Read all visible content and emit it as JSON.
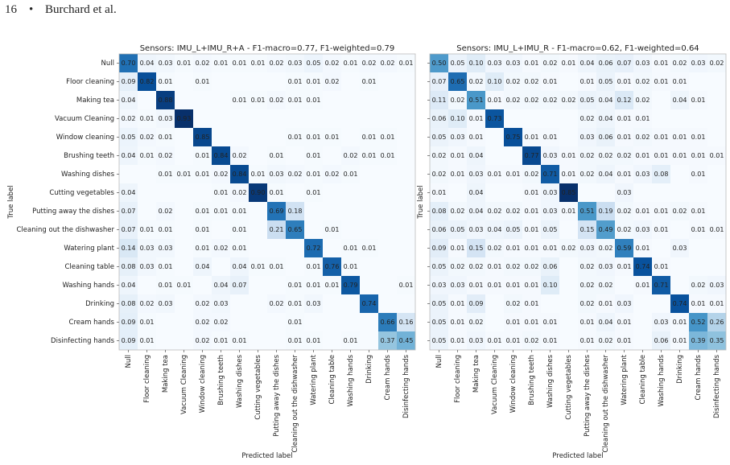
{
  "page_header": {
    "page_number": "16",
    "running_head": "Burchard et al."
  },
  "chart_data": [
    {
      "type": "heatmap",
      "colormap": "Blues",
      "title": "Sensors: IMU_L+IMU_R+A - F1-macro=0.77, F1-weighted=0.79",
      "x_label": "Predicted label",
      "y_label": "True label",
      "categories": [
        "Null",
        "Floor cleaning",
        "Making tea",
        "Vacuum Cleaning",
        "Window cleaning",
        "Brushing teeth",
        "Washing dishes",
        "Cutting vegetables",
        "Putting away the dishes",
        "Cleaning out the dishwasher",
        "Watering plant",
        "Cleaning table",
        "Washing hands",
        "Drinking",
        "Cream hands",
        "Disinfecting hands"
      ],
      "values": [
        [
          0.7,
          0.04,
          0.03,
          0.01,
          0.02,
          0.01,
          0.01,
          0.01,
          0.02,
          0.03,
          0.05,
          0.02,
          0.01,
          0.02,
          0.02,
          0.01
        ],
        [
          0.09,
          0.82,
          0.01,
          null,
          0.01,
          null,
          null,
          null,
          null,
          0.01,
          0.01,
          0.02,
          null,
          0.01,
          null,
          null
        ],
        [
          0.04,
          null,
          0.88,
          null,
          null,
          null,
          0.01,
          0.01,
          0.02,
          0.01,
          0.01,
          null,
          null,
          null,
          null,
          null
        ],
        [
          0.02,
          0.01,
          0.03,
          0.93,
          null,
          null,
          null,
          null,
          null,
          null,
          null,
          null,
          null,
          null,
          null,
          null
        ],
        [
          0.05,
          0.02,
          0.01,
          null,
          0.85,
          null,
          null,
          null,
          null,
          0.01,
          0.01,
          0.01,
          null,
          0.01,
          0.01,
          null
        ],
        [
          0.04,
          0.01,
          0.02,
          null,
          0.01,
          0.84,
          0.02,
          null,
          0.01,
          null,
          0.01,
          null,
          0.02,
          0.01,
          0.01,
          null
        ],
        [
          null,
          null,
          0.01,
          0.01,
          0.01,
          0.02,
          0.84,
          0.01,
          0.03,
          0.02,
          0.01,
          0.02,
          0.01,
          null,
          null,
          null
        ],
        [
          0.04,
          null,
          null,
          null,
          null,
          0.01,
          0.02,
          0.9,
          0.01,
          null,
          0.01,
          null,
          null,
          null,
          null,
          null
        ],
        [
          0.07,
          null,
          0.02,
          null,
          0.01,
          0.01,
          0.01,
          null,
          0.69,
          0.18,
          null,
          null,
          null,
          null,
          null,
          null
        ],
        [
          0.07,
          0.01,
          0.01,
          null,
          0.01,
          null,
          0.01,
          null,
          0.21,
          0.65,
          null,
          0.01,
          null,
          null,
          null,
          null
        ],
        [
          0.14,
          0.03,
          0.03,
          null,
          0.01,
          0.02,
          0.01,
          null,
          null,
          null,
          0.72,
          null,
          0.01,
          0.01,
          null,
          null
        ],
        [
          0.08,
          0.03,
          0.01,
          null,
          0.04,
          null,
          0.04,
          0.01,
          0.01,
          null,
          0.01,
          0.76,
          0.01,
          null,
          null,
          null
        ],
        [
          0.04,
          null,
          0.01,
          0.01,
          null,
          0.04,
          0.07,
          null,
          null,
          0.01,
          0.01,
          0.01,
          0.79,
          null,
          null,
          0.01
        ],
        [
          0.08,
          0.02,
          0.03,
          null,
          0.02,
          0.03,
          null,
          null,
          0.02,
          0.01,
          0.03,
          null,
          null,
          0.74,
          null,
          null
        ],
        [
          0.09,
          0.01,
          null,
          null,
          0.02,
          0.02,
          null,
          null,
          null,
          0.01,
          null,
          null,
          null,
          null,
          0.66,
          0.16
        ],
        [
          0.09,
          0.01,
          null,
          null,
          0.02,
          0.01,
          0.01,
          null,
          null,
          0.01,
          0.01,
          null,
          0.01,
          null,
          0.37,
          0.45
        ]
      ],
      "value_labels": [
        [
          "0.70",
          "0.04",
          "0.03",
          "0.01",
          "0.02",
          "0.01",
          "0.01",
          "0.01",
          "0.02",
          "0.03",
          "0.05",
          "0.02",
          "0.01",
          "0.02",
          "0.02",
          "0.01"
        ],
        [
          "0.09",
          "0.82",
          "0.01",
          null,
          "0.01",
          null,
          null,
          null,
          null,
          "0.01",
          "0.01",
          "0.02",
          null,
          "0.01",
          null,
          null
        ],
        [
          "0.04",
          null,
          "0.88",
          null,
          null,
          null,
          "0.01",
          "0.01",
          "0.02",
          "0.01",
          "0.01",
          null,
          null,
          null,
          null,
          null
        ],
        [
          "0.02",
          "0.01",
          "0.03",
          "0.93",
          null,
          null,
          null,
          null,
          null,
          null,
          null,
          null,
          null,
          null,
          null,
          null
        ],
        [
          "0.05",
          "0.02",
          "0.01",
          null,
          "0.85",
          null,
          null,
          null,
          null,
          "0.01",
          "0.01",
          "0.01",
          null,
          "0.01",
          "0.01",
          null
        ],
        [
          "0.04",
          "0.01",
          "0.02",
          null,
          "0.01",
          "0.84",
          "0.02",
          null,
          "0.01",
          null,
          "0.01",
          null,
          "0.02",
          "0.01",
          "0.01",
          null
        ],
        [
          null,
          null,
          "0.01",
          "0.01",
          "0.01",
          "0.02",
          "0.84",
          "0.01",
          "0.03",
          "0.02",
          "0.01",
          "0.02",
          "0.01",
          null,
          null,
          null
        ],
        [
          "0.04",
          null,
          null,
          null,
          null,
          "0.01",
          "0.02",
          "0.90",
          "0.01",
          null,
          "0.01",
          null,
          null,
          null,
          null,
          null
        ],
        [
          "0.07",
          null,
          "0.02",
          null,
          "0.01",
          "0.01",
          "0.01",
          null,
          "0.69",
          "0.18",
          null,
          null,
          null,
          null,
          null,
          null
        ],
        [
          "0.07",
          "0.01",
          "0.01",
          null,
          "0.01",
          null,
          "0.01",
          null,
          "0.21",
          "0.65",
          null,
          "0.01",
          null,
          null,
          null,
          null
        ],
        [
          "0.14",
          "0.03",
          "0.03",
          null,
          "0.01",
          "0.02",
          "0.01",
          null,
          null,
          null,
          "0.72",
          null,
          "0.01",
          "0.01",
          null,
          null
        ],
        [
          "0.08",
          "0.03",
          "0.01",
          null,
          "0.04",
          null,
          "0.04",
          "0.01",
          "0.01",
          null,
          "0.01",
          "0.76",
          "0.01",
          null,
          null,
          null
        ],
        [
          "0.04",
          null,
          "0.01",
          "0.01",
          null,
          "0.04",
          "0.07",
          null,
          null,
          "0.01",
          "0.01",
          "0.01",
          "0.79",
          null,
          null,
          "0.01"
        ],
        [
          "0.08",
          "0.02",
          "0.03",
          null,
          "0.02",
          "0.03",
          null,
          null,
          "0.02",
          "0.01",
          "0.03",
          null,
          null,
          "0.74",
          null,
          null
        ],
        [
          "0.09",
          "0.01",
          null,
          null,
          "0.02",
          "0.02",
          null,
          null,
          null,
          "0.01",
          null,
          null,
          null,
          null,
          "0.66",
          "0.16"
        ],
        [
          "0.09",
          "0.01",
          null,
          null,
          "0.02",
          "0.01",
          "0.01",
          null,
          null,
          "0.01",
          "0.01",
          null,
          "0.01",
          null,
          "0.37",
          "0.45"
        ]
      ]
    },
    {
      "type": "heatmap",
      "colormap": "Blues",
      "title": "Sensors: IMU_L+IMU_R - F1-macro=0.62, F1-weighted=0.64",
      "x_label": "Predicted label",
      "y_label": "True label",
      "categories": [
        "Null",
        "Floor cleaning",
        "Making tea",
        "Vacuum Cleaning",
        "Window cleaning",
        "Brushing teeth",
        "Washing dishes",
        "Cutting vegetables",
        "Putting away the dishes",
        "Cleaning out the dishwasher",
        "Watering plant",
        "Cleaning table",
        "Washing hands",
        "Drinking",
        "Cream hands",
        "Disinfecting hands"
      ],
      "values": [
        [
          0.5,
          0.05,
          0.1,
          0.03,
          0.03,
          0.01,
          0.02,
          0.01,
          0.04,
          0.06,
          0.07,
          0.03,
          0.01,
          0.02,
          0.03,
          0.02
        ],
        [
          0.07,
          0.65,
          0.02,
          0.1,
          0.02,
          0.02,
          0.01,
          null,
          0.01,
          0.05,
          0.01,
          0.02,
          0.01,
          0.01,
          null,
          null
        ],
        [
          0.11,
          0.02,
          0.51,
          0.01,
          0.02,
          0.02,
          0.02,
          0.02,
          0.05,
          0.04,
          0.12,
          0.02,
          null,
          0.04,
          0.01,
          null
        ],
        [
          0.06,
          0.1,
          0.01,
          0.73,
          null,
          null,
          null,
          null,
          0.02,
          0.04,
          0.01,
          0.01,
          null,
          null,
          null,
          null
        ],
        [
          0.05,
          0.03,
          0.01,
          null,
          0.75,
          0.01,
          0.01,
          null,
          0.03,
          0.06,
          0.01,
          0.02,
          0.01,
          0.01,
          0.01,
          null
        ],
        [
          0.02,
          0.01,
          0.04,
          null,
          null,
          0.77,
          0.03,
          0.01,
          0.02,
          0.02,
          0.02,
          0.01,
          0.01,
          0.01,
          0.01,
          0.01
        ],
        [
          0.02,
          0.01,
          0.03,
          0.01,
          0.01,
          0.02,
          0.71,
          0.01,
          0.02,
          0.04,
          0.01,
          0.03,
          0.08,
          null,
          0.01,
          null
        ],
        [
          0.01,
          null,
          0.04,
          null,
          null,
          0.01,
          0.03,
          0.85,
          null,
          null,
          0.03,
          null,
          null,
          null,
          null,
          null
        ],
        [
          0.08,
          0.02,
          0.04,
          0.02,
          0.02,
          0.01,
          0.03,
          0.01,
          0.51,
          0.19,
          0.02,
          0.01,
          0.01,
          0.02,
          0.01,
          null
        ],
        [
          0.06,
          0.05,
          0.03,
          0.04,
          0.05,
          0.01,
          0.05,
          null,
          0.15,
          0.49,
          0.02,
          0.03,
          0.01,
          null,
          0.01,
          0.01
        ],
        [
          0.09,
          0.01,
          0.15,
          0.02,
          0.01,
          0.01,
          0.01,
          0.02,
          0.03,
          0.02,
          0.59,
          0.01,
          null,
          0.03,
          null,
          null
        ],
        [
          0.05,
          0.02,
          0.02,
          0.01,
          0.02,
          0.02,
          0.06,
          null,
          0.02,
          0.03,
          0.01,
          0.74,
          0.01,
          null,
          null,
          null
        ],
        [
          0.03,
          0.03,
          0.01,
          0.01,
          0.01,
          0.01,
          0.1,
          null,
          0.02,
          0.02,
          null,
          0.01,
          0.71,
          null,
          0.02,
          0.03
        ],
        [
          0.05,
          0.01,
          0.09,
          null,
          0.02,
          0.01,
          null,
          null,
          0.02,
          0.01,
          0.03,
          null,
          null,
          0.74,
          0.01,
          0.01
        ],
        [
          0.05,
          0.01,
          0.02,
          null,
          0.01,
          0.01,
          0.01,
          null,
          0.01,
          0.04,
          0.01,
          null,
          0.03,
          0.01,
          0.52,
          0.26
        ],
        [
          0.05,
          0.01,
          0.03,
          0.01,
          0.01,
          0.02,
          0.01,
          null,
          0.01,
          0.02,
          0.01,
          null,
          0.06,
          0.01,
          0.39,
          0.35
        ]
      ],
      "value_labels": [
        [
          "0.50",
          "0.05",
          "0.10",
          "0.03",
          "0.03",
          "0.01",
          "0.02",
          "0.01",
          "0.04",
          "0.06",
          "0.07",
          "0.03",
          "0.01",
          "0.02",
          "0.03",
          "0.02"
        ],
        [
          "0.07",
          "0.65",
          "0.02",
          "0.10",
          "0.02",
          "0.02",
          "0.01",
          null,
          "0.01",
          "0.05",
          "0.01",
          "0.02",
          "0.01",
          "0.01",
          null,
          null
        ],
        [
          "0.11",
          "0.02",
          "0.51",
          "0.01",
          "0.02",
          "0.02",
          "0.02",
          "0.02",
          "0.05",
          "0.04",
          "0.12",
          "0.02",
          null,
          "0.04",
          "0.01",
          null
        ],
        [
          "0.06",
          "0.10",
          "0.01",
          "0.73",
          null,
          null,
          null,
          null,
          "0.02",
          "0.04",
          "0.01",
          "0.01",
          null,
          null,
          null,
          null
        ],
        [
          "0.05",
          "0.03",
          "0.01",
          null,
          "0.75",
          "0.01",
          "0.01",
          null,
          "0.03",
          "0.06",
          "0.01",
          "0.02",
          "0.01",
          "0.01",
          "0.01",
          null
        ],
        [
          "0.02",
          "0.01",
          "0.04",
          null,
          null,
          "0.77",
          "0.03",
          "0.01",
          "0.02",
          "0.02",
          "0.02",
          "0.01",
          "0.01",
          "0.01",
          "0.01",
          "0.01"
        ],
        [
          "0.02",
          "0.01",
          "0.03",
          "0.01",
          "0.01",
          "0.02",
          "0.71",
          "0.01",
          "0.02",
          "0.04",
          "0.01",
          "0.03",
          "0.08",
          null,
          "0.01",
          null
        ],
        [
          "0.01",
          null,
          "0.04",
          null,
          null,
          "0.01",
          "0.03",
          "0.85",
          null,
          null,
          "0.03",
          null,
          null,
          null,
          null,
          null
        ],
        [
          "0.08",
          "0.02",
          "0.04",
          "0.02",
          "0.02",
          "0.01",
          "0.03",
          "0.01",
          "0.51",
          "0.19",
          "0.02",
          "0.01",
          "0.01",
          "0.02",
          "0.01",
          null
        ],
        [
          "0.06",
          "0.05",
          "0.03",
          "0.04",
          "0.05",
          "0.01",
          "0.05",
          null,
          "0.15",
          "0.49",
          "0.02",
          "0.03",
          "0.01",
          null,
          "0.01",
          "0.01"
        ],
        [
          "0.09",
          "0.01",
          "0.15",
          "0.02",
          "0.01",
          "0.01",
          "0.01",
          "0.02",
          "0.03",
          "0.02",
          "0.59",
          "0.01",
          null,
          "0.03",
          null,
          null
        ],
        [
          "0.05",
          "0.02",
          "0.02",
          "0.01",
          "0.02",
          "0.02",
          "0.06",
          null,
          "0.02",
          "0.03",
          "0.01",
          "0.74",
          "0.01",
          null,
          null,
          null
        ],
        [
          "0.03",
          "0.03",
          "0.01",
          "0.01",
          "0.01",
          "0.01",
          "0.10",
          null,
          "0.02",
          "0.02",
          null,
          "0.01",
          "0.71",
          null,
          "0.02",
          "0.03"
        ],
        [
          "0.05",
          "0.01",
          "0.09",
          null,
          "0.02",
          "0.01",
          null,
          null,
          "0.02",
          "0.01",
          "0.03",
          null,
          null,
          "0.74",
          "0.01",
          "0.01"
        ],
        [
          "0.05",
          "0.01",
          "0.02",
          null,
          "0.01",
          "0.01",
          "0.01",
          null,
          "0.01",
          "0.04",
          "0.01",
          null,
          "0.03",
          "0.01",
          "0.52",
          "0.26"
        ],
        [
          "0.05",
          "0.01",
          "0.03",
          "0.01",
          "0.01",
          "0.02",
          "0.01",
          null,
          "0.01",
          "0.02",
          "0.01",
          null,
          "0.06",
          "0.01",
          "0.39",
          "0.35"
        ]
      ]
    }
  ]
}
